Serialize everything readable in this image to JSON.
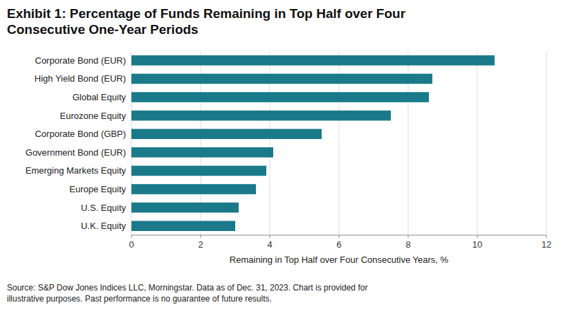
{
  "chart_data": {
    "type": "bar",
    "orientation": "horizontal",
    "title": "Exhibit 1: Percentage of Funds Remaining in Top Half over Four\nConsecutive One-Year Periods",
    "x_label": "Remaining in Top Half over Four Consecutive Years, %",
    "categories": [
      "U.K. Equity",
      "U.S. Equity",
      "Europe Equity",
      "Emerging Markets Equity",
      "Government Bond (EUR)",
      "Corporate Bond (GBP)",
      "Eurozone Equity",
      "Global Equity",
      "High Yield Bond (EUR)",
      "Corporate Bond (EUR)"
    ],
    "values": [
      3.0,
      3.1,
      3.6,
      3.9,
      4.1,
      5.5,
      7.5,
      8.6,
      8.7,
      10.5
    ],
    "color": "#1a7a8a",
    "xlim": [
      0,
      12
    ],
    "xticks": [
      0,
      2,
      4,
      6,
      8,
      10,
      12
    ],
    "grid": true,
    "source": "Source: S&P Dow Jones Indices LLC, Morningstar.  Data as of Dec. 31, 2023.  Chart is provided for\nillustrative purposes.  Past performance is no guarantee of future results."
  }
}
